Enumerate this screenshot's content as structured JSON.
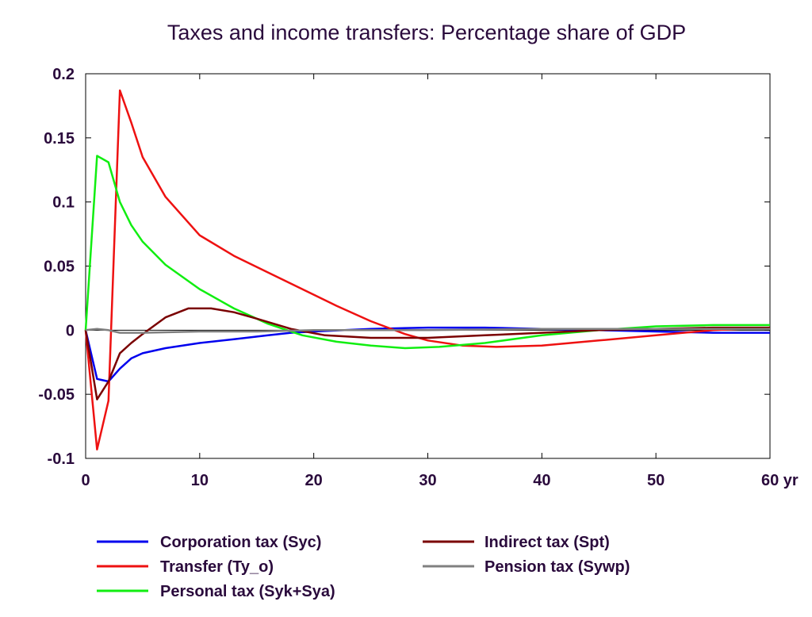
{
  "chart_data": {
    "type": "line",
    "title": "Taxes and income transfers: Percentage share of GDP",
    "x_unit": "yr",
    "xlim": [
      0,
      60
    ],
    "ylim": [
      -0.1,
      0.2
    ],
    "x_ticks": [
      0,
      10,
      20,
      30,
      40,
      50,
      60
    ],
    "x_tick_labels": [
      "0",
      "10",
      "20",
      "30",
      "40",
      "50",
      "60 yr"
    ],
    "y_ticks": [
      -0.1,
      -0.05,
      0,
      0.05,
      0.1,
      0.15,
      0.2
    ],
    "y_tick_labels": [
      "-0.1",
      "-0.05",
      "0",
      "0.05",
      "0.1",
      "0.15",
      "0.2"
    ],
    "grid": false,
    "zero_line": true,
    "legend_position": "bottom",
    "series": [
      {
        "name": "Corporation tax (Syc)",
        "color": "#0000ee",
        "x": [
          0,
          1,
          2,
          3,
          4,
          5,
          7,
          10,
          13,
          16,
          18,
          20,
          25,
          30,
          35,
          40,
          45,
          50,
          55,
          60
        ],
        "y": [
          0,
          -0.038,
          -0.04,
          -0.03,
          -0.022,
          -0.018,
          -0.014,
          -0.01,
          -0.007,
          -0.004,
          -0.002,
          -0.001,
          0.001,
          0.002,
          0.002,
          0.001,
          0.0,
          -0.001,
          -0.002,
          -0.002
        ]
      },
      {
        "name": "Transfer (Ty_o)",
        "color": "#ee1111",
        "x": [
          0,
          1,
          2,
          3,
          4,
          5,
          7,
          10,
          13,
          16,
          19,
          22,
          25,
          28,
          30,
          33,
          36,
          40,
          45,
          50,
          55,
          60
        ],
        "y": [
          0,
          -0.093,
          -0.055,
          0.187,
          0.162,
          0.135,
          0.104,
          0.074,
          0.058,
          0.045,
          0.032,
          0.019,
          0.007,
          -0.003,
          -0.008,
          -0.012,
          -0.013,
          -0.012,
          -0.008,
          -0.004,
          0.0,
          0.002
        ]
      },
      {
        "name": "Personal tax (Syk+Sya)",
        "color": "#11ee11",
        "x": [
          0,
          1,
          2,
          3,
          4,
          5,
          7,
          10,
          13,
          16,
          19,
          22,
          25,
          28,
          31,
          35,
          40,
          45,
          50,
          55,
          60
        ],
        "y": [
          0,
          0.136,
          0.131,
          0.1,
          0.082,
          0.069,
          0.051,
          0.032,
          0.017,
          0.005,
          -0.004,
          -0.009,
          -0.012,
          -0.014,
          -0.013,
          -0.01,
          -0.004,
          0.0,
          0.003,
          0.004,
          0.004
        ]
      },
      {
        "name": "Indirect tax (Spt)",
        "color": "#7a0000",
        "x": [
          0,
          1,
          2,
          3,
          4,
          5,
          7,
          9,
          11,
          13,
          15,
          18,
          21,
          25,
          30,
          35,
          40,
          45,
          50,
          55,
          60
        ],
        "y": [
          0,
          -0.054,
          -0.04,
          -0.018,
          -0.01,
          -0.003,
          0.01,
          0.017,
          0.017,
          0.014,
          0.009,
          0.001,
          -0.004,
          -0.006,
          -0.006,
          -0.004,
          -0.002,
          0.0,
          0.001,
          0.002,
          0.002
        ]
      },
      {
        "name": "Pension tax (Sywp)",
        "color": "#808080",
        "x": [
          0,
          1,
          2,
          3,
          5,
          10,
          15,
          20,
          30,
          40,
          50,
          60
        ],
        "y": [
          0,
          0.001,
          0.0,
          -0.002,
          -0.002,
          -0.001,
          -0.001,
          0.0,
          0.0,
          0.001,
          0.001,
          0.001
        ]
      }
    ]
  },
  "legend": {
    "left_column": [
      {
        "label": "Corporation tax (Syc)",
        "color": "#0000ee"
      },
      {
        "label": "Transfer (Ty_o)",
        "color": "#ee1111"
      },
      {
        "label": "Personal tax (Syk+Sya)",
        "color": "#11ee11"
      }
    ],
    "right_column": [
      {
        "label": "Indirect tax (Spt)",
        "color": "#7a0000"
      },
      {
        "label": "Pension tax (Sywp)",
        "color": "#808080"
      }
    ]
  }
}
